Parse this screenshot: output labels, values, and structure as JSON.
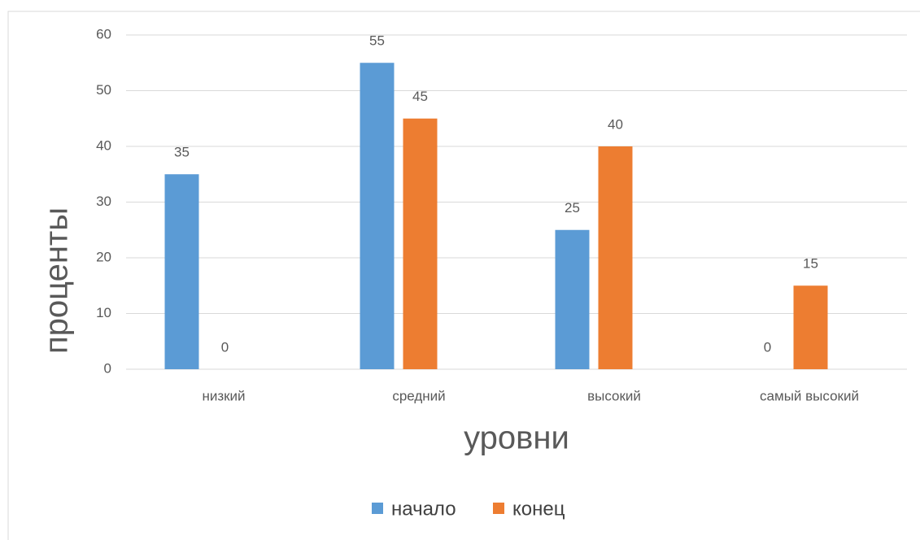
{
  "chart_data": {
    "type": "bar",
    "categories": [
      "низкий",
      "средний",
      "высокий",
      "самый высокий"
    ],
    "series": [
      {
        "name": "начало",
        "color": "#5b9bd5",
        "values": [
          35,
          55,
          25,
          0
        ]
      },
      {
        "name": "конец",
        "color": "#ed7d31",
        "values": [
          0,
          45,
          40,
          15
        ]
      }
    ],
    "xlabel": "уровни",
    "ylabel": "проценты",
    "ylim": [
      0,
      60
    ],
    "yticks": [
      0,
      10,
      20,
      30,
      40,
      50,
      60
    ],
    "grid": true,
    "legend": "bottom",
    "data_labels": true
  }
}
